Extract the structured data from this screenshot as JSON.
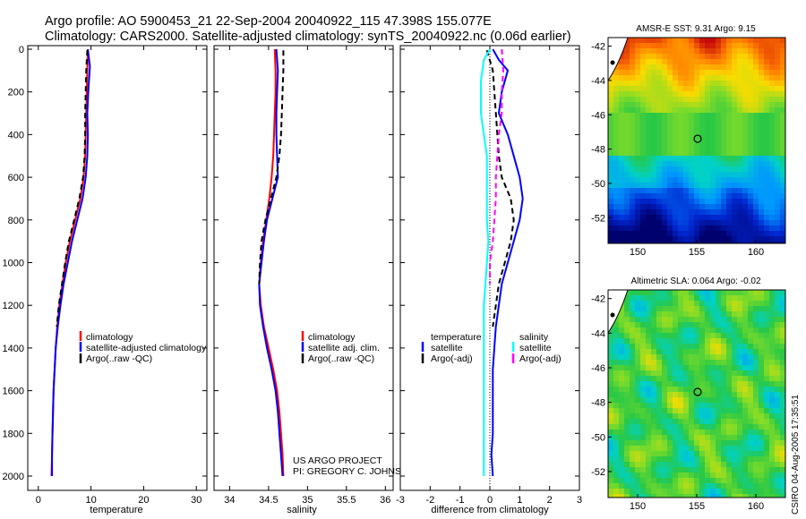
{
  "header": {
    "line1": "Argo profile: AO 5900453_21 22-Sep-2004 20040922_115 47.398S 155.077E",
    "line2": "Climatology: CARS2000. Satellite-adjusted climatology: synTS_20040922.nc (0.06d earlier)"
  },
  "credit": {
    "project": "US ARGO PROJECT",
    "pi": "PI: GREGORY C. JOHNSON",
    "stamp": "CSIRO 04-Aug-2005 17:35:51"
  },
  "colors": {
    "climatology": "#ff0000",
    "satellite": "#0000ff",
    "argo": "#000000",
    "salinity_diff": "#00ffff",
    "argo_adj_sal": "#ff00ff"
  },
  "chart_data": [
    {
      "type": "line",
      "name": "temperature-profile",
      "xlabel": "temperature",
      "ylabel": "",
      "xlim": [
        -2,
        32
      ],
      "ylim": [
        0,
        2050
      ],
      "x_ticks": [
        0,
        10,
        20,
        30
      ],
      "y_ticks": [
        0,
        200,
        400,
        600,
        800,
        1000,
        1200,
        1400,
        1600,
        1800,
        2000
      ],
      "legend": [
        "climatology",
        "satellite-adjusted climatology",
        "Argo(..raw -QC)"
      ],
      "legend_position": "lower-right",
      "series": [
        {
          "name": "climatology",
          "color": "#ff0000",
          "width": 2,
          "dash": "",
          "points": [
            [
              9.4,
              0
            ],
            [
              9.3,
              100
            ],
            [
              9.2,
              200
            ],
            [
              9.1,
              300
            ],
            [
              9.0,
              400
            ],
            [
              8.9,
              500
            ],
            [
              8.6,
              600
            ],
            [
              8.0,
              700
            ],
            [
              7.0,
              800
            ],
            [
              6.0,
              900
            ],
            [
              5.2,
              1000
            ],
            [
              4.6,
              1100
            ],
            [
              4.0,
              1200
            ],
            [
              3.6,
              1300
            ],
            [
              3.3,
              1400
            ],
            [
              3.1,
              1500
            ],
            [
              2.9,
              1600
            ],
            [
              2.8,
              1700
            ],
            [
              2.7,
              1800
            ],
            [
              2.6,
              1900
            ],
            [
              2.5,
              2000
            ]
          ]
        },
        {
          "name": "satellite-adjusted climatology",
          "color": "#0000ff",
          "width": 2,
          "dash": "",
          "points": [
            [
              9.4,
              0
            ],
            [
              9.8,
              80
            ],
            [
              9.5,
              200
            ],
            [
              9.3,
              300
            ],
            [
              9.4,
              400
            ],
            [
              9.3,
              500
            ],
            [
              9.0,
              600
            ],
            [
              8.4,
              700
            ],
            [
              7.4,
              800
            ],
            [
              6.4,
              900
            ],
            [
              5.6,
              1000
            ],
            [
              4.8,
              1100
            ],
            [
              4.2,
              1200
            ],
            [
              3.7,
              1300
            ],
            [
              3.3,
              1400
            ],
            [
              3.1,
              1500
            ],
            [
              2.9,
              1600
            ],
            [
              2.8,
              1700
            ],
            [
              2.7,
              1800
            ],
            [
              2.6,
              1900
            ],
            [
              2.6,
              2000
            ]
          ]
        },
        {
          "name": "Argo(..raw -QC)",
          "color": "#000000",
          "width": 2,
          "dash": "6,4",
          "points": [
            [
              9.3,
              5
            ],
            [
              9.1,
              100
            ],
            [
              9.0,
              200
            ],
            [
              8.9,
              300
            ],
            [
              8.9,
              400
            ],
            [
              8.8,
              500
            ],
            [
              8.5,
              600
            ],
            [
              7.8,
              700
            ],
            [
              6.8,
              800
            ],
            [
              5.8,
              900
            ],
            [
              5.1,
              1000
            ],
            [
              4.5,
              1100
            ],
            [
              3.9,
              1200
            ],
            [
              3.5,
              1300
            ]
          ]
        }
      ]
    },
    {
      "type": "line",
      "name": "salinity-profile",
      "xlabel": "salinity",
      "ylabel": "",
      "xlim": [
        33.8,
        36.1
      ],
      "ylim": [
        0,
        2050
      ],
      "x_ticks": [
        34,
        34.5,
        35,
        35.5,
        36
      ],
      "y_ticks": [],
      "legend": [
        "climatology",
        "satellite adj. clim.",
        "Argo(..raw -QC)"
      ],
      "legend_position": "lower-right",
      "series": [
        {
          "name": "climatology",
          "color": "#ff0000",
          "width": 2,
          "dash": "",
          "points": [
            [
              34.58,
              0
            ],
            [
              34.59,
              100
            ],
            [
              34.59,
              200
            ],
            [
              34.58,
              300
            ],
            [
              34.57,
              400
            ],
            [
              34.56,
              500
            ],
            [
              34.54,
              600
            ],
            [
              34.51,
              700
            ],
            [
              34.47,
              800
            ],
            [
              34.43,
              900
            ],
            [
              34.4,
              1000
            ],
            [
              34.38,
              1100
            ],
            [
              34.4,
              1200
            ],
            [
              34.44,
              1300
            ],
            [
              34.5,
              1400
            ],
            [
              34.56,
              1500
            ],
            [
              34.61,
              1600
            ],
            [
              34.64,
              1700
            ],
            [
              34.66,
              1800
            ],
            [
              34.68,
              1900
            ],
            [
              34.69,
              2000
            ]
          ]
        },
        {
          "name": "satellite adj. clim.",
          "color": "#0000ff",
          "width": 2,
          "dash": "",
          "points": [
            [
              34.6,
              0
            ],
            [
              34.62,
              100
            ],
            [
              34.61,
              200
            ],
            [
              34.6,
              300
            ],
            [
              34.6,
              400
            ],
            [
              34.61,
              500
            ],
            [
              34.62,
              600
            ],
            [
              34.55,
              700
            ],
            [
              34.48,
              800
            ],
            [
              34.44,
              900
            ],
            [
              34.41,
              1000
            ],
            [
              34.38,
              1100
            ],
            [
              34.39,
              1200
            ],
            [
              34.43,
              1300
            ],
            [
              34.48,
              1400
            ],
            [
              34.54,
              1500
            ],
            [
              34.59,
              1600
            ],
            [
              34.62,
              1700
            ],
            [
              34.64,
              1800
            ],
            [
              34.66,
              1900
            ],
            [
              34.68,
              2000
            ]
          ]
        },
        {
          "name": "Argo(..raw -QC)",
          "color": "#000000",
          "width": 2,
          "dash": "6,4",
          "points": [
            [
              34.69,
              5
            ],
            [
              34.69,
              100
            ],
            [
              34.68,
              200
            ],
            [
              34.67,
              300
            ],
            [
              34.66,
              400
            ],
            [
              34.64,
              500
            ],
            [
              34.6,
              600
            ],
            [
              34.53,
              700
            ],
            [
              34.46,
              800
            ],
            [
              34.41,
              900
            ],
            [
              34.39,
              1000
            ],
            [
              34.38,
              1100
            ]
          ]
        }
      ]
    },
    {
      "type": "line",
      "name": "difference-profile",
      "xlabel": "difference from climatology",
      "ylabel": "",
      "xlim": [
        -3,
        3
      ],
      "ylim": [
        0,
        2050
      ],
      "x_ticks": [
        -3,
        -2,
        -1,
        0,
        1,
        2,
        3
      ],
      "y_ticks": [],
      "legend_left": [
        "temperature",
        "satellite",
        "Argo(-adj)"
      ],
      "legend_right": [
        "salinity",
        "satellite",
        "Argo(-adj)"
      ],
      "legend_position": "lower",
      "series": [
        {
          "name": "temperature satellite",
          "color": "#0000ff",
          "width": 2,
          "dash": "",
          "points": [
            [
              0.1,
              0
            ],
            [
              0.3,
              50
            ],
            [
              0.6,
              100
            ],
            [
              0.4,
              200
            ],
            [
              0.3,
              300
            ],
            [
              0.6,
              400
            ],
            [
              0.8,
              500
            ],
            [
              1.0,
              600
            ],
            [
              1.1,
              700
            ],
            [
              1.0,
              800
            ],
            [
              0.8,
              900
            ],
            [
              0.6,
              1000
            ],
            [
              0.4,
              1100
            ],
            [
              0.3,
              1200
            ],
            [
              0.2,
              1300
            ],
            [
              0.15,
              1400
            ],
            [
              0.1,
              1500
            ],
            [
              0.1,
              1600
            ],
            [
              0.1,
              1700
            ],
            [
              0.1,
              1800
            ],
            [
              0.05,
              1900
            ],
            [
              0.1,
              2000
            ]
          ]
        },
        {
          "name": "temperature Argo(-adj)",
          "color": "#000000",
          "width": 2,
          "dash": "6,4",
          "points": [
            [
              -0.1,
              5
            ],
            [
              0.1,
              100
            ],
            [
              0.2,
              300
            ],
            [
              0.3,
              500
            ],
            [
              0.4,
              600
            ],
            [
              0.7,
              700
            ],
            [
              0.8,
              800
            ],
            [
              0.7,
              900
            ],
            [
              0.5,
              1000
            ],
            [
              0.3,
              1100
            ],
            [
              0.2,
              1200
            ],
            [
              0.1,
              1300
            ]
          ]
        },
        {
          "name": "salinity satellite",
          "color": "#00ffff",
          "width": 2,
          "dash": "",
          "points": [
            [
              0.0,
              0
            ],
            [
              -0.2,
              50
            ],
            [
              -0.3,
              150
            ],
            [
              -0.3,
              300
            ],
            [
              -0.2,
              400
            ],
            [
              -0.1,
              500
            ],
            [
              -0.1,
              600
            ],
            [
              -0.1,
              700
            ],
            [
              -0.1,
              800
            ],
            [
              -0.05,
              900
            ],
            [
              -0.1,
              1000
            ],
            [
              -0.15,
              1100
            ],
            [
              -0.2,
              1200
            ],
            [
              -0.2,
              1300
            ],
            [
              -0.2,
              1400
            ],
            [
              -0.2,
              1500
            ],
            [
              -0.2,
              1600
            ],
            [
              -0.2,
              1700
            ],
            [
              -0.2,
              1800
            ],
            [
              -0.2,
              1900
            ],
            [
              -0.2,
              2000
            ]
          ]
        },
        {
          "name": "salinity Argo(-adj)",
          "color": "#ff00ff",
          "width": 2,
          "dash": "6,4",
          "points": [
            [
              0.4,
              0
            ],
            [
              0.45,
              100
            ],
            [
              0.4,
              200
            ],
            [
              0.4,
              300
            ],
            [
              0.3,
              400
            ],
            [
              0.25,
              500
            ],
            [
              0.2,
              600
            ],
            [
              0.2,
              700
            ],
            [
              0.15,
              800
            ],
            [
              0.1,
              900
            ],
            [
              0.0,
              1000
            ],
            [
              0.0,
              1100
            ]
          ]
        }
      ]
    },
    {
      "type": "heatmap",
      "name": "sst-map",
      "title": "AMSR-E SST: 9.31 Argo: 9.15",
      "xlim": [
        147.5,
        162.5
      ],
      "ylim": [
        -53.5,
        -41.5
      ],
      "x_ticks": [
        150,
        155,
        160
      ],
      "y_ticks": [
        -42,
        -44,
        -46,
        -48,
        -50,
        -52
      ],
      "marker": {
        "lon": 155.077,
        "lat": -47.398
      }
    },
    {
      "type": "heatmap",
      "name": "sla-map",
      "title": "Altimetric SLA: 0.064 Argo: -0.02",
      "xlim": [
        147.5,
        162.5
      ],
      "ylim": [
        -53.5,
        -41.5
      ],
      "x_ticks": [
        150,
        155,
        160
      ],
      "y_ticks": [
        -42,
        -44,
        -46,
        -48,
        -50,
        -52
      ],
      "marker": {
        "lon": 155.077,
        "lat": -47.398
      }
    }
  ]
}
